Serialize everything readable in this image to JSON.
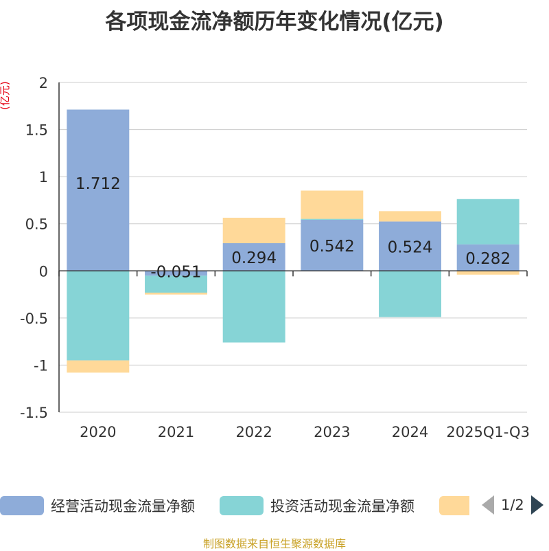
{
  "title": "各项现金流净额历年变化情况(亿元)",
  "unit_label": "(亿元)",
  "colors": {
    "operating": "#8eacd9",
    "investing": "#86d4d6",
    "financing": "#ffd999",
    "grid": "#cccccc",
    "axis": "#333333"
  },
  "chart_data": {
    "type": "bar",
    "stacked": true,
    "categories": [
      "2020",
      "2021",
      "2022",
      "2023",
      "2024",
      "2025Q1-Q3"
    ],
    "ylim": [
      -1.5,
      2
    ],
    "yticks": [
      "2",
      "1.5",
      "1",
      "0.5",
      "0",
      "-0.5",
      "-1",
      "-1.5"
    ],
    "ytick_values": [
      2,
      1.5,
      1,
      0.5,
      0,
      -0.5,
      -1,
      -1.5
    ],
    "grid": true,
    "series": [
      {
        "name": "经营活动现金流量净额",
        "values": [
          1.712,
          -0.051,
          0.294,
          0.542,
          0.524,
          0.282
        ],
        "labels": [
          "1.712",
          "-0.051",
          "0.294",
          "0.542",
          "0.524",
          "0.282"
        ]
      },
      {
        "name": "投资活动现金流量净额",
        "values": [
          -0.95,
          -0.18,
          -0.76,
          0.01,
          -0.49,
          0.48
        ]
      },
      {
        "values": [
          -0.13,
          -0.02,
          0.27,
          0.3,
          0.11,
          -0.04
        ]
      }
    ]
  },
  "legend": {
    "items": [
      "经营活动现金流量净额",
      "投资活动现金流量净额",
      ""
    ],
    "page": "1/2"
  },
  "source": "制图数据来自恒生聚源数据库"
}
